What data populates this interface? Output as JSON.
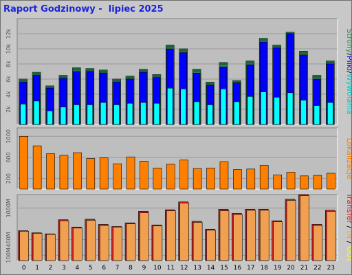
{
  "title": "Raport Godzinowy -  lipiec 2025",
  "colors": {
    "background": "#c8c8c8",
    "panel": "#bebebe",
    "strony": "#2e8b57",
    "pliki": "#0000ff",
    "wywolania": "#00ffff",
    "lokalizacje": "#ff8000",
    "transfer_out": "#d02020",
    "transfer_in": "#f0a050"
  },
  "chart_data": [
    {
      "type": "bar",
      "panel": "hits",
      "categories": [
        "0",
        "1",
        "2",
        "3",
        "4",
        "5",
        "6",
        "7",
        "8",
        "9",
        "10",
        "11",
        "12",
        "13",
        "14",
        "15",
        "16",
        "17",
        "18",
        "19",
        "20",
        "21",
        "22",
        "23"
      ],
      "ylim": [
        0,
        14000
      ],
      "yticks": [
        "2k",
        "4k",
        "6k",
        "8k",
        "10k",
        "12k"
      ],
      "ytick_values": [
        2000,
        4000,
        6000,
        8000,
        10000,
        12000
      ],
      "ylabel_parts": [
        {
          "text": "Strony",
          "color": "#2e8b57"
        },
        {
          "text": "/",
          "color": "#000000"
        },
        {
          "text": "Pliki",
          "color": "#0000ff"
        },
        {
          "text": "/",
          "color": "#000000"
        },
        {
          "text": "Wywołania",
          "color": "#00c8c8"
        }
      ],
      "series": [
        {
          "name": "Strony",
          "color": "#2e8b57",
          "values": [
            6000,
            6900,
            5100,
            6500,
            7500,
            7400,
            7200,
            6000,
            6400,
            7300,
            6600,
            10500,
            10000,
            7300,
            5600,
            8200,
            5800,
            8400,
            11400,
            10500,
            12200,
            9700,
            6500,
            8400
          ]
        },
        {
          "name": "Pliki",
          "color": "#0000ff",
          "values": [
            5600,
            6500,
            4800,
            6100,
            7000,
            7000,
            6800,
            5600,
            6000,
            6900,
            6200,
            10000,
            9500,
            6800,
            5200,
            7600,
            5500,
            7900,
            10900,
            10100,
            12000,
            9200,
            6000,
            8000
          ]
        },
        {
          "name": "Wywołania",
          "color": "#00ffff",
          "values": [
            2700,
            3100,
            1800,
            2300,
            2600,
            2600,
            2900,
            2600,
            2800,
            2900,
            2800,
            4800,
            4700,
            3000,
            2600,
            4700,
            3000,
            3700,
            4300,
            3600,
            4200,
            3200,
            2500,
            2900
          ]
        }
      ]
    },
    {
      "type": "bar",
      "panel": "sites",
      "categories": [
        "0",
        "1",
        "2",
        "3",
        "4",
        "5",
        "6",
        "7",
        "8",
        "9",
        "10",
        "11",
        "12",
        "13",
        "14",
        "15",
        "16",
        "17",
        "18",
        "19",
        "20",
        "21",
        "22",
        "23"
      ],
      "ylim": [
        0,
        1160
      ],
      "yticks": [
        "200",
        "600",
        "1000"
      ],
      "ytick_values": [
        200,
        600,
        1000
      ],
      "ylabel_parts": [
        {
          "text": "Lokalizacje",
          "color": "#ff8000"
        }
      ],
      "series": [
        {
          "name": "Lokalizacje",
          "color": "#ff8000",
          "values": [
            1000,
            820,
            670,
            640,
            690,
            580,
            590,
            480,
            610,
            530,
            400,
            470,
            550,
            390,
            400,
            520,
            370,
            380,
            450,
            270,
            320,
            250,
            260,
            300
          ]
        }
      ]
    },
    {
      "type": "bar",
      "panel": "transfer",
      "categories": [
        "0",
        "1",
        "2",
        "3",
        "4",
        "5",
        "6",
        "7",
        "8",
        "9",
        "10",
        "11",
        "12",
        "13",
        "14",
        "15",
        "16",
        "17",
        "18",
        "19",
        "20",
        "21",
        "22",
        "23"
      ],
      "ylim": [
        0,
        1260
      ],
      "yticks": [
        "100M",
        "400M",
        "1000M"
      ],
      "ytick_values": [
        100,
        400,
        1000
      ],
      "ylabel_parts": [
        {
          "text": "Transfer",
          "color": "#d02020"
        },
        {
          "text": " / ",
          "color": "#000000"
        },
        {
          "text": "IN",
          "color": "#f0a050"
        },
        {
          "text": " / ",
          "color": "#000000"
        },
        {
          "text": "OUT",
          "color": "#ffff00"
        }
      ],
      "series": [
        {
          "name": "Transfer",
          "color": "#d02020",
          "values": [
            570,
            530,
            510,
            780,
            640,
            790,
            690,
            650,
            720,
            940,
            680,
            970,
            1120,
            750,
            600,
            980,
            900,
            980,
            980,
            760,
            1170,
            1260,
            690,
            960
          ]
        },
        {
          "name": "IN",
          "color": "#f0a050",
          "values": [
            560,
            520,
            500,
            760,
            620,
            770,
            670,
            640,
            700,
            910,
            660,
            950,
            1100,
            730,
            580,
            950,
            880,
            960,
            960,
            740,
            1150,
            1240,
            670,
            940
          ]
        }
      ]
    }
  ]
}
